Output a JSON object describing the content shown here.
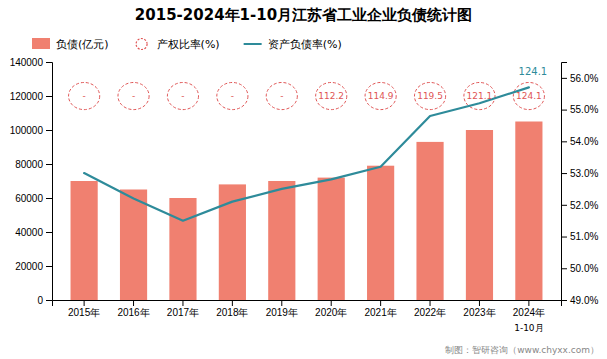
{
  "chart_data": {
    "type": "bar",
    "title": "2015-2024年1-10月江苏省工业企业负债统计图",
    "categories": [
      "2015年",
      "2016年",
      "2017年",
      "2018年",
      "2019年",
      "2020年",
      "2021年",
      "2022年",
      "2023年",
      "2024年"
    ],
    "series": [
      {
        "name": "负债(亿元)",
        "type": "bar",
        "color": "#F08070",
        "values": [
          70000,
          65000,
          60000,
          68000,
          70000,
          72000,
          79000,
          93000,
          100000,
          105000
        ]
      },
      {
        "name": "产权比率(%)",
        "type": "scatter",
        "marker": "circle",
        "line_style": "dashed",
        "color": "#E05555",
        "data_labels": true,
        "values": [
          null,
          null,
          null,
          null,
          null,
          112.2,
          114.9,
          119.5,
          121.1,
          124.1
        ],
        "value_labels": [
          "-",
          "-",
          "-",
          "-",
          "-",
          "112.2",
          "114.9",
          "119.5",
          "121.1",
          "124.1"
        ]
      },
      {
        "name": "资产负债率(%)",
        "type": "line",
        "axis": "y2",
        "color": "#2E8B9A",
        "values": [
          53.0,
          52.2,
          51.5,
          52.1,
          52.5,
          52.8,
          53.2,
          54.8,
          55.2,
          55.7
        ]
      }
    ],
    "ylim": [
      0,
      140000
    ],
    "yticks": [
      0,
      20000,
      40000,
      60000,
      80000,
      100000,
      120000,
      140000
    ],
    "y2lim": [
      49.0,
      56.5
    ],
    "y2ticks": [
      {
        "value": 49.0,
        "label": "49.0%"
      },
      {
        "value": 50.0,
        "label": "50.0%"
      },
      {
        "value": 51.0,
        "label": "51.0%"
      },
      {
        "value": 52.0,
        "label": "52.0%"
      },
      {
        "value": 53.0,
        "label": "53.0%"
      },
      {
        "value": 54.0,
        "label": "54.0%"
      },
      {
        "value": 55.0,
        "label": "55.0%"
      },
      {
        "value": 56.0,
        "label": "56.0%"
      }
    ],
    "annotations": [
      "124.1",
      "1-10月"
    ],
    "footer": "制图：智研咨询（www.chyxx.com）",
    "legend": "upper left",
    "grid": false
  }
}
